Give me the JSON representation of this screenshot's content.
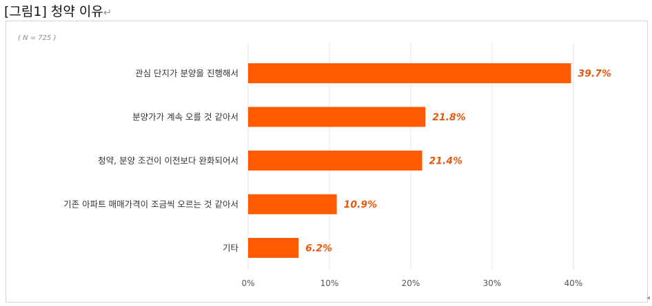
{
  "figure": {
    "title": "[그림1] 청약 이유",
    "paragraph_mark": "↵",
    "sample_note": "( N = 725 )"
  },
  "chart_data": {
    "type": "bar",
    "orientation": "horizontal",
    "categories": [
      "관심 단지가 분양을 진행해서",
      "분양가가 계속 오를 것 같아서",
      "청약, 분양 조건이 이전보다 완화되어서",
      "기존 아파트 매매가격이 조금씩 오르는 것 같아서",
      "기타"
    ],
    "values": [
      39.7,
      21.8,
      21.4,
      10.9,
      6.2
    ],
    "data_labels": [
      "39.7%",
      "21.8%",
      "21.4%",
      "10.9%",
      "6.2%"
    ],
    "xlim": [
      0,
      40
    ],
    "xticks": [
      0,
      10,
      20,
      30,
      40
    ],
    "xtick_labels": [
      "0%",
      "10%",
      "20%",
      "30%",
      "40%"
    ],
    "grid": "vertical",
    "legend": "none",
    "bar_color": "#ff5a00",
    "label_color": "#e45a10",
    "grid_color": "#e6e6e6"
  }
}
